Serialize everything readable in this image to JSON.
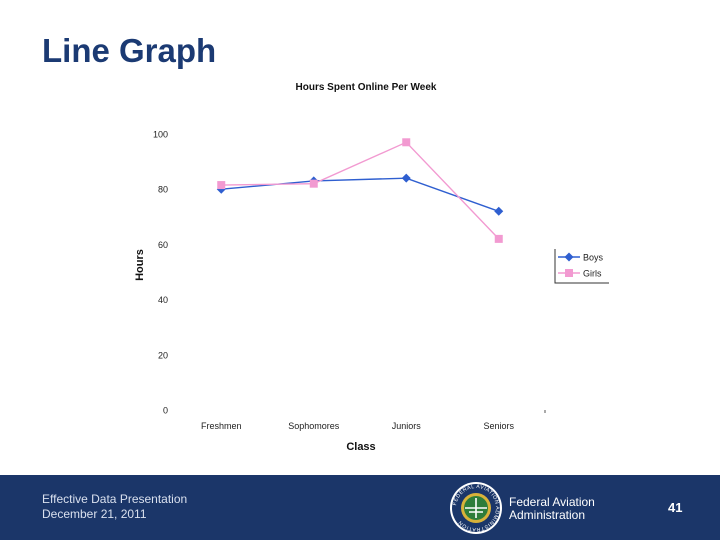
{
  "slide": {
    "title": "Line Graph"
  },
  "chart_data": {
    "type": "line",
    "title": "Hours Spent Online Per Week",
    "xlabel": "Class",
    "ylabel": "Hours",
    "categories": [
      "Freshmen",
      "Sophomores",
      "Juniors",
      "Seniors"
    ],
    "yticks": [
      0,
      20,
      40,
      60,
      80,
      100
    ],
    "ylim": [
      0,
      100
    ],
    "grid": false,
    "legend_position": "right",
    "series": [
      {
        "name": "Boys",
        "values": [
          80,
          83,
          84,
          72
        ],
        "color": "#2f5fd0",
        "marker": "diamond"
      },
      {
        "name": "Girls",
        "values": [
          81.5,
          82,
          97,
          62
        ],
        "color": "#f29ad1",
        "marker": "square"
      }
    ]
  },
  "footer": {
    "presentation_title": "Effective Data Presentation",
    "date": "December 21, 2011",
    "agency_line1": "Federal Aviation",
    "agency_line2": "Administration",
    "page_number": "41",
    "seal_text": "FEDERAL AVIATION ADMINISTRATION",
    "background_color": "#1b3669"
  }
}
